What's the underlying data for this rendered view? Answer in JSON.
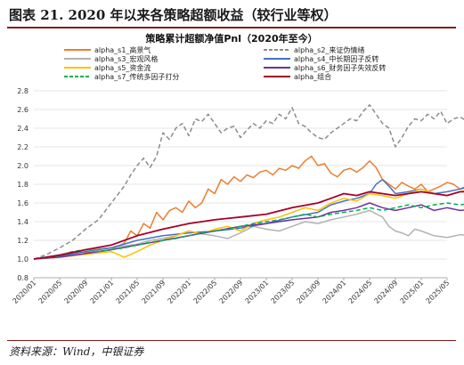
{
  "page": {
    "title": "图表 21. 2020 年以来各策略超额收益（较行业等权）",
    "source": "资料来源：Wind，中银证券",
    "title_rule_color": "#8b1a1a"
  },
  "chart_data": {
    "type": "line",
    "title": "策略累计超额净值Pnl（2020年至今）",
    "xlabel": "",
    "ylabel": "",
    "ylim": [
      0.8,
      2.8
    ],
    "yticks": [
      "0.8",
      "1.0",
      "1.2",
      "1.4",
      "1.6",
      "1.8",
      "2.0",
      "2.2",
      "2.4",
      "2.6",
      "2.8"
    ],
    "x_ticks": [
      "2020/01",
      "2020/05",
      "2020/09",
      "2021/01",
      "2021/05",
      "2021/09",
      "2022/01",
      "2022/05",
      "2022/09",
      "2023/01",
      "2023/05",
      "2023/09",
      "2024/01",
      "2024/05",
      "2024/09",
      "2025/01",
      "2025/05"
    ],
    "grid": "horizontal",
    "legend_position": "top",
    "series": [
      {
        "name": "alpha_s1_高景气",
        "color": "#ed7d31",
        "dash": "solid",
        "points": [
          [
            0,
            1.0
          ],
          [
            3,
            1.03
          ],
          [
            6,
            1.08
          ],
          [
            9,
            1.07
          ],
          [
            12,
            1.1
          ],
          [
            14,
            1.17
          ],
          [
            15,
            1.3
          ],
          [
            16,
            1.25
          ],
          [
            17,
            1.38
          ],
          [
            18,
            1.33
          ],
          [
            19,
            1.5
          ],
          [
            20,
            1.42
          ],
          [
            21,
            1.52
          ],
          [
            22,
            1.55
          ],
          [
            23,
            1.5
          ],
          [
            24,
            1.62
          ],
          [
            25,
            1.55
          ],
          [
            26,
            1.6
          ],
          [
            27,
            1.75
          ],
          [
            28,
            1.7
          ],
          [
            29,
            1.85
          ],
          [
            30,
            1.8
          ],
          [
            31,
            1.88
          ],
          [
            32,
            1.83
          ],
          [
            33,
            1.9
          ],
          [
            34,
            1.87
          ],
          [
            35,
            1.93
          ],
          [
            36,
            1.95
          ],
          [
            37,
            1.9
          ],
          [
            38,
            1.97
          ],
          [
            39,
            1.95
          ],
          [
            40,
            2.0
          ],
          [
            41,
            1.97
          ],
          [
            42,
            2.05
          ],
          [
            43,
            2.1
          ],
          [
            44,
            2.0
          ],
          [
            45,
            2.02
          ],
          [
            46,
            1.92
          ],
          [
            47,
            1.88
          ],
          [
            48,
            1.95
          ],
          [
            49,
            1.97
          ],
          [
            50,
            1.93
          ],
          [
            51,
            1.98
          ],
          [
            52,
            2.05
          ],
          [
            53,
            1.98
          ],
          [
            54,
            1.85
          ],
          [
            55,
            1.8
          ],
          [
            56,
            1.75
          ],
          [
            57,
            1.82
          ],
          [
            58,
            1.78
          ],
          [
            59,
            1.75
          ],
          [
            60,
            1.8
          ],
          [
            61,
            1.72
          ],
          [
            62,
            1.75
          ],
          [
            63,
            1.78
          ],
          [
            64,
            1.82
          ],
          [
            65,
            1.8
          ],
          [
            66,
            1.75
          ],
          [
            67,
            1.78
          ],
          [
            68,
            1.85
          ]
        ]
      },
      {
        "name": "alpha_s2_来证伪情绪",
        "color": "#8c8c8c",
        "dash": "dashed",
        "points": [
          [
            0,
            1.0
          ],
          [
            2,
            1.05
          ],
          [
            4,
            1.12
          ],
          [
            6,
            1.2
          ],
          [
            8,
            1.32
          ],
          [
            10,
            1.42
          ],
          [
            12,
            1.6
          ],
          [
            14,
            1.78
          ],
          [
            15,
            1.9
          ],
          [
            16,
            2.0
          ],
          [
            17,
            2.08
          ],
          [
            18,
            1.98
          ],
          [
            19,
            2.1
          ],
          [
            20,
            2.35
          ],
          [
            21,
            2.28
          ],
          [
            22,
            2.4
          ],
          [
            23,
            2.45
          ],
          [
            24,
            2.32
          ],
          [
            25,
            2.5
          ],
          [
            26,
            2.47
          ],
          [
            27,
            2.55
          ],
          [
            28,
            2.45
          ],
          [
            29,
            2.35
          ],
          [
            30,
            2.4
          ],
          [
            31,
            2.42
          ],
          [
            32,
            2.3
          ],
          [
            33,
            2.38
          ],
          [
            34,
            2.45
          ],
          [
            35,
            2.4
          ],
          [
            36,
            2.48
          ],
          [
            37,
            2.45
          ],
          [
            38,
            2.55
          ],
          [
            39,
            2.5
          ],
          [
            40,
            2.62
          ],
          [
            41,
            2.45
          ],
          [
            42,
            2.42
          ],
          [
            43,
            2.35
          ],
          [
            44,
            2.3
          ],
          [
            45,
            2.28
          ],
          [
            46,
            2.35
          ],
          [
            47,
            2.4
          ],
          [
            48,
            2.45
          ],
          [
            49,
            2.5
          ],
          [
            50,
            2.48
          ],
          [
            51,
            2.58
          ],
          [
            52,
            2.65
          ],
          [
            53,
            2.55
          ],
          [
            54,
            2.45
          ],
          [
            55,
            2.4
          ],
          [
            56,
            2.2
          ],
          [
            57,
            2.3
          ],
          [
            58,
            2.42
          ],
          [
            59,
            2.5
          ],
          [
            60,
            2.48
          ],
          [
            61,
            2.55
          ],
          [
            62,
            2.5
          ],
          [
            63,
            2.58
          ],
          [
            64,
            2.45
          ],
          [
            65,
            2.5
          ],
          [
            66,
            2.52
          ],
          [
            67,
            2.48
          ],
          [
            68,
            2.42
          ]
        ]
      },
      {
        "name": "alpha_s3_宏观风格",
        "color": "#b3b3b3",
        "dash": "solid",
        "points": [
          [
            0,
            1.0
          ],
          [
            4,
            1.05
          ],
          [
            8,
            1.1
          ],
          [
            12,
            1.12
          ],
          [
            16,
            1.16
          ],
          [
            18,
            1.2
          ],
          [
            20,
            1.22
          ],
          [
            22,
            1.25
          ],
          [
            24,
            1.3
          ],
          [
            26,
            1.27
          ],
          [
            28,
            1.25
          ],
          [
            30,
            1.22
          ],
          [
            32,
            1.28
          ],
          [
            34,
            1.35
          ],
          [
            36,
            1.32
          ],
          [
            38,
            1.3
          ],
          [
            40,
            1.35
          ],
          [
            42,
            1.4
          ],
          [
            44,
            1.38
          ],
          [
            46,
            1.42
          ],
          [
            48,
            1.45
          ],
          [
            50,
            1.48
          ],
          [
            52,
            1.52
          ],
          [
            54,
            1.45
          ],
          [
            55,
            1.35
          ],
          [
            56,
            1.3
          ],
          [
            57,
            1.28
          ],
          [
            58,
            1.25
          ],
          [
            59,
            1.32
          ],
          [
            60,
            1.3
          ],
          [
            62,
            1.25
          ],
          [
            64,
            1.23
          ],
          [
            66,
            1.26
          ],
          [
            68,
            1.25
          ]
        ]
      },
      {
        "name": "alpha_s4_中长期因子反转",
        "color": "#4472c4",
        "dash": "solid",
        "points": [
          [
            0,
            1.0
          ],
          [
            4,
            1.03
          ],
          [
            8,
            1.08
          ],
          [
            12,
            1.12
          ],
          [
            16,
            1.2
          ],
          [
            20,
            1.25
          ],
          [
            24,
            1.28
          ],
          [
            28,
            1.3
          ],
          [
            32,
            1.33
          ],
          [
            36,
            1.38
          ],
          [
            40,
            1.45
          ],
          [
            44,
            1.5
          ],
          [
            46,
            1.58
          ],
          [
            48,
            1.62
          ],
          [
            50,
            1.65
          ],
          [
            52,
            1.7
          ],
          [
            53,
            1.8
          ],
          [
            54,
            1.85
          ],
          [
            55,
            1.78
          ],
          [
            56,
            1.7
          ],
          [
            58,
            1.72
          ],
          [
            60,
            1.75
          ],
          [
            62,
            1.7
          ],
          [
            64,
            1.72
          ],
          [
            66,
            1.75
          ],
          [
            68,
            1.78
          ]
        ]
      },
      {
        "name": "alpha_s5_资金流",
        "color": "#ffc000",
        "dash": "solid",
        "points": [
          [
            0,
            1.0
          ],
          [
            4,
            1.02
          ],
          [
            8,
            1.05
          ],
          [
            12,
            1.08
          ],
          [
            14,
            1.02
          ],
          [
            16,
            1.08
          ],
          [
            18,
            1.15
          ],
          [
            20,
            1.2
          ],
          [
            22,
            1.25
          ],
          [
            24,
            1.3
          ],
          [
            26,
            1.27
          ],
          [
            28,
            1.32
          ],
          [
            30,
            1.35
          ],
          [
            32,
            1.3
          ],
          [
            34,
            1.38
          ],
          [
            36,
            1.42
          ],
          [
            38,
            1.45
          ],
          [
            40,
            1.5
          ],
          [
            42,
            1.55
          ],
          [
            44,
            1.52
          ],
          [
            46,
            1.6
          ],
          [
            48,
            1.65
          ],
          [
            50,
            1.62
          ],
          [
            52,
            1.7
          ],
          [
            54,
            1.68
          ],
          [
            56,
            1.65
          ],
          [
            58,
            1.7
          ],
          [
            60,
            1.75
          ],
          [
            62,
            1.7
          ],
          [
            64,
            1.68
          ],
          [
            66,
            1.72
          ],
          [
            68,
            1.75
          ]
        ]
      },
      {
        "name": "alpha_s6_财务因子失效反转",
        "color": "#7030a0",
        "dash": "solid",
        "points": [
          [
            0,
            1.0
          ],
          [
            4,
            1.02
          ],
          [
            8,
            1.06
          ],
          [
            12,
            1.1
          ],
          [
            16,
            1.15
          ],
          [
            20,
            1.2
          ],
          [
            24,
            1.25
          ],
          [
            28,
            1.3
          ],
          [
            32,
            1.35
          ],
          [
            36,
            1.38
          ],
          [
            40,
            1.42
          ],
          [
            44,
            1.45
          ],
          [
            46,
            1.5
          ],
          [
            48,
            1.52
          ],
          [
            50,
            1.55
          ],
          [
            52,
            1.6
          ],
          [
            54,
            1.55
          ],
          [
            56,
            1.52
          ],
          [
            58,
            1.55
          ],
          [
            60,
            1.58
          ],
          [
            62,
            1.52
          ],
          [
            64,
            1.55
          ],
          [
            66,
            1.52
          ],
          [
            68,
            1.53
          ]
        ]
      },
      {
        "name": "alpha_s7_传统多因子打分",
        "color": "#00b050",
        "dash": "dashed",
        "points": [
          [
            0,
            1.0
          ],
          [
            4,
            1.03
          ],
          [
            6,
            1.08
          ],
          [
            8,
            1.1
          ],
          [
            10,
            1.08
          ],
          [
            12,
            1.1
          ],
          [
            14,
            1.12
          ],
          [
            16,
            1.15
          ],
          [
            18,
            1.18
          ],
          [
            20,
            1.2
          ],
          [
            22,
            1.22
          ],
          [
            24,
            1.25
          ],
          [
            26,
            1.28
          ],
          [
            28,
            1.3
          ],
          [
            30,
            1.32
          ],
          [
            32,
            1.35
          ],
          [
            34,
            1.38
          ],
          [
            36,
            1.4
          ],
          [
            38,
            1.42
          ],
          [
            40,
            1.45
          ],
          [
            42,
            1.48
          ],
          [
            44,
            1.45
          ],
          [
            46,
            1.48
          ],
          [
            48,
            1.5
          ],
          [
            50,
            1.52
          ],
          [
            52,
            1.55
          ],
          [
            54,
            1.52
          ],
          [
            56,
            1.55
          ],
          [
            58,
            1.58
          ],
          [
            60,
            1.55
          ],
          [
            62,
            1.58
          ],
          [
            64,
            1.6
          ],
          [
            66,
            1.58
          ],
          [
            68,
            1.6
          ]
        ]
      },
      {
        "name": "alpha_组合",
        "color": "#a5002a",
        "dash": "solid",
        "points": [
          [
            0,
            1.0
          ],
          [
            4,
            1.04
          ],
          [
            8,
            1.1
          ],
          [
            12,
            1.15
          ],
          [
            16,
            1.25
          ],
          [
            20,
            1.32
          ],
          [
            24,
            1.38
          ],
          [
            28,
            1.42
          ],
          [
            32,
            1.45
          ],
          [
            36,
            1.48
          ],
          [
            40,
            1.55
          ],
          [
            44,
            1.6
          ],
          [
            46,
            1.65
          ],
          [
            48,
            1.7
          ],
          [
            50,
            1.68
          ],
          [
            52,
            1.72
          ],
          [
            54,
            1.7
          ],
          [
            56,
            1.68
          ],
          [
            58,
            1.7
          ],
          [
            60,
            1.72
          ],
          [
            62,
            1.7
          ],
          [
            64,
            1.68
          ],
          [
            66,
            1.72
          ],
          [
            68,
            1.72
          ]
        ]
      }
    ]
  }
}
